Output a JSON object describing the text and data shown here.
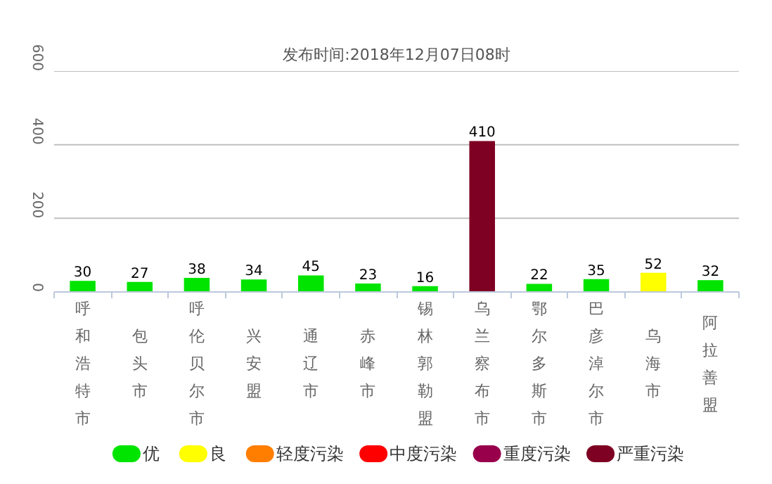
{
  "chart_data": {
    "type": "bar",
    "title": "发布时间:2018年12月07日08时",
    "categories": [
      "呼和浩特市",
      "包头市",
      "呼伦贝尔市",
      "兴安盟",
      "通辽市",
      "赤峰市",
      "锡林郭勒盟",
      "乌兰察布市",
      "鄂尔多斯市",
      "巴彦淖尔市",
      "乌海市",
      "阿拉善盟"
    ],
    "series": [
      {
        "name": "优",
        "color": "#00e400",
        "values": [
          30,
          27,
          38,
          34,
          45,
          23,
          16,
          null,
          22,
          35,
          null,
          32
        ]
      },
      {
        "name": "良",
        "color": "#ffff00",
        "values": [
          null,
          null,
          null,
          null,
          null,
          null,
          null,
          null,
          null,
          null,
          52,
          null
        ]
      },
      {
        "name": "轻度污染",
        "color": "#ff7e00",
        "values": [
          null,
          null,
          null,
          null,
          null,
          null,
          null,
          null,
          null,
          null,
          null,
          null
        ]
      },
      {
        "name": "中度污染",
        "color": "#ff0000",
        "values": [
          null,
          null,
          null,
          null,
          null,
          null,
          null,
          null,
          null,
          null,
          null,
          null
        ]
      },
      {
        "name": "重度污染",
        "color": "#99004c",
        "values": [
          null,
          null,
          null,
          null,
          null,
          null,
          null,
          null,
          null,
          null,
          null,
          null
        ]
      },
      {
        "name": "严重污染",
        "color": "#7e0023",
        "values": [
          null,
          null,
          null,
          null,
          null,
          null,
          null,
          410,
          null,
          null,
          null,
          null
        ]
      }
    ],
    "ylim": [
      0,
      600
    ],
    "yticks": [
      0,
      200,
      400,
      600
    ],
    "grid": "y",
    "legend": "bottom",
    "data_labels": true
  }
}
